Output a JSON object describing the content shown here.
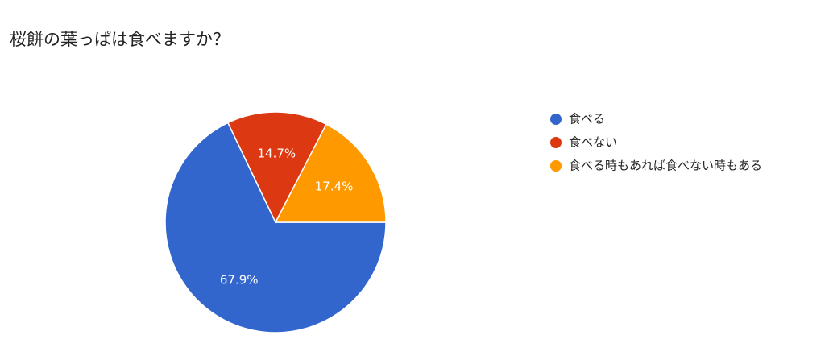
{
  "chart_data": {
    "type": "pie",
    "title": "桜餅の葉っぱは食べますか？",
    "categories": [
      "食べる",
      "食べない",
      "食べる時もあれば食べない時もある"
    ],
    "values": [
      67.9,
      14.7,
      17.4
    ],
    "value_labels": [
      "67.9%",
      "14.7%",
      "17.4%"
    ],
    "colors": [
      "#3366cc",
      "#dc3912",
      "#ff9900"
    ]
  }
}
